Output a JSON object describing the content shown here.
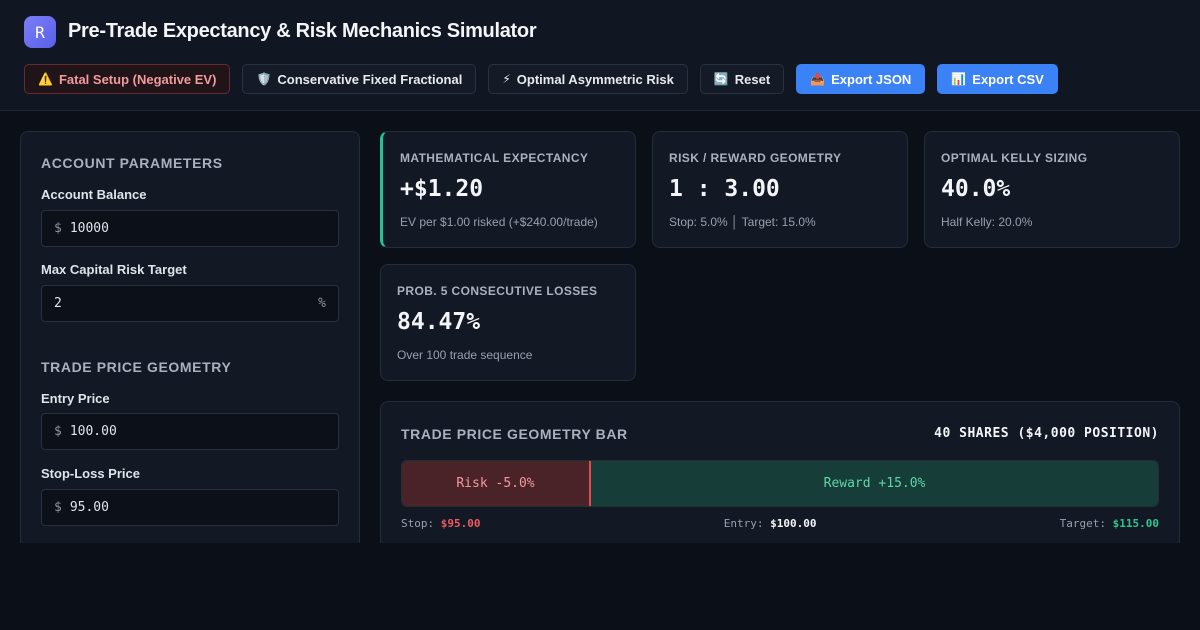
{
  "app": {
    "logo_letter": "R",
    "title": "Pre-Trade Expectancy & Risk Mechanics Simulator"
  },
  "toolbar": {
    "buttons": [
      {
        "icon": "⚠️",
        "label": "Fatal Setup (Negative EV)",
        "style": "danger"
      },
      {
        "icon": "🛡️",
        "label": "Conservative Fixed Fractional",
        "style": "default"
      },
      {
        "icon": "⚡",
        "label": "Optimal Asymmetric Risk",
        "style": "default"
      },
      {
        "icon": "🔄",
        "label": "Reset",
        "style": "default"
      },
      {
        "icon": "📤",
        "label": "Export JSON",
        "style": "primary"
      },
      {
        "icon": "📊",
        "label": "Export CSV",
        "style": "primary"
      }
    ]
  },
  "account": {
    "section_title": "ACCOUNT PARAMETERS",
    "balance_label": "Account Balance",
    "balance_prefix": "$",
    "balance_value": "10000",
    "risk_label": "Max Capital Risk Target",
    "risk_value": "2",
    "risk_suffix": "%"
  },
  "trade": {
    "section_title": "TRADE PRICE GEOMETRY",
    "entry_label": "Entry Price",
    "entry_prefix": "$",
    "entry_value": "100.00",
    "stop_label": "Stop-Loss Price",
    "stop_prefix": "$",
    "stop_value": "95.00"
  },
  "cards": {
    "expectancy": {
      "label": "MATHEMATICAL EXPECTANCY",
      "value": "+$1.20",
      "sub": "EV per $1.00 risked (+$240.00/trade)"
    },
    "rr": {
      "label": "RISK / REWARD GEOMETRY",
      "value": "1 : 3.00",
      "sub": "Stop: 5.0% │ Target: 15.0%"
    },
    "kelly": {
      "label": "OPTIMAL KELLY SIZING",
      "value": "40.0%",
      "sub": "Half Kelly: 20.0%"
    },
    "losses": {
      "label": "PROB. 5 CONSECUTIVE LOSSES",
      "value": "84.47%",
      "sub": "Over 100 trade sequence"
    }
  },
  "geometry": {
    "title": "TRADE PRICE GEOMETRY BAR",
    "shares": "40 SHARES ($4,000 POSITION)",
    "risk_label": "Risk -5.0%",
    "reward_label": "Reward +15.0%",
    "risk_fraction": 0.25,
    "stop_caption": "Stop:",
    "stop_value": "$95.00",
    "entry_caption": "Entry:",
    "entry_value": "$100.00",
    "target_caption": "Target:",
    "target_value": "$115.00"
  },
  "colors": {
    "accent_green": "#22c38e",
    "danger_red": "#e5484d",
    "primary_blue": "#3b82f6"
  }
}
